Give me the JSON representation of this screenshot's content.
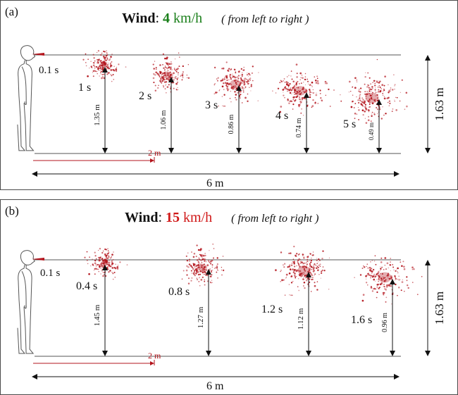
{
  "colors": {
    "droplet": "#b3141c",
    "speed_low": "#1a7f1a",
    "speed_high": "#d01818",
    "line": "#555555",
    "axis": "#111111"
  },
  "panels": [
    {
      "label": "(a)",
      "title": {
        "wind": "Wind",
        "colon": ":",
        "speed": "4",
        "unit": "km/h",
        "direction": "( from left to right )"
      },
      "speed_color": "#1a7f1a",
      "height_label": "1.63 m",
      "distance_label": "6 m",
      "marker_label": "2 m",
      "clouds": [
        {
          "time": "0.1 s",
          "height": "",
          "kind": "plume"
        },
        {
          "time": "1 s",
          "height": "1.35 m",
          "spread": 0.55,
          "density": 170
        },
        {
          "time": "2 s",
          "height": "1.06 m",
          "spread": 0.8,
          "density": 190
        },
        {
          "time": "3 s",
          "height": "0.86 m",
          "spread": 1.0,
          "density": 200
        },
        {
          "time": "4 s",
          "height": "0.74 m",
          "spread": 1.15,
          "density": 210
        },
        {
          "time": "5 s",
          "height": "0.49 m",
          "spread": 1.3,
          "density": 220
        }
      ]
    },
    {
      "label": "(b)",
      "title": {
        "wind": "Wind",
        "colon": ":",
        "speed": "15",
        "unit": "km/h",
        "direction": "( from left to right )"
      },
      "speed_color": "#d01818",
      "height_label": "1.63 m",
      "distance_label": "6 m",
      "marker_label": "2 m",
      "clouds": [
        {
          "time": "0.1 s",
          "height": "",
          "kind": "plume"
        },
        {
          "time": "0.4 s",
          "height": "1.45 m",
          "spread": 0.55,
          "density": 170
        },
        {
          "time": "0.8 s",
          "height": "1.27 m",
          "spread": 0.85,
          "density": 200
        },
        {
          "time": "1.2 s",
          "height": "1.12 m",
          "spread": 1.15,
          "density": 230
        },
        {
          "time": "1.6 s",
          "height": "0.96 m",
          "spread": 1.3,
          "density": 190
        }
      ]
    }
  ]
}
